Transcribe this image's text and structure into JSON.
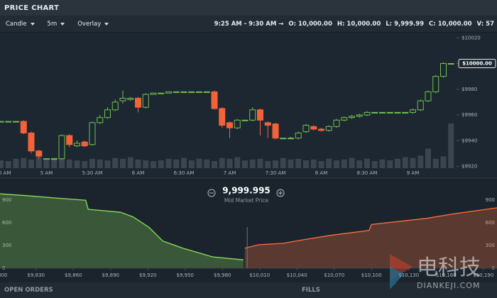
{
  "header": {
    "title": "PRICE CHART"
  },
  "toolbar": {
    "chart_type": "Candle",
    "interval": "5m",
    "overlay": "Overlay",
    "range": "9:25 AM - 9:30 AM →",
    "ohlcv": [
      {
        "key": "O:",
        "value": "10,000.00"
      },
      {
        "key": "H:",
        "value": "10,000.00"
      },
      {
        "key": "L:",
        "value": "9,999.99"
      },
      {
        "key": "C:",
        "value": "10,000.00"
      },
      {
        "key": "V:",
        "value": "57"
      }
    ]
  },
  "chart_data": [
    {
      "type": "candlestick",
      "x": [
        "4:30 AM",
        "4:35 AM",
        "4:40 AM",
        "4:45 AM",
        "4:50 AM",
        "4:55 AM",
        "5 AM",
        "5:05 AM",
        "5:10 AM",
        "5:15 AM",
        "5:20 AM",
        "5:25 AM",
        "5:30 AM",
        "5:35 AM",
        "5:40 AM",
        "5:45 AM",
        "5:50 AM",
        "5:55 AM",
        "6 AM",
        "6:05 AM",
        "6:10 AM",
        "6:15 AM",
        "6:20 AM",
        "6:25 AM",
        "6:30 AM",
        "6:35 AM",
        "6:40 AM",
        "6:45 AM",
        "6:50 AM",
        "6:55 AM",
        "7 AM",
        "7:05 AM",
        "7:10 AM",
        "7:15 AM",
        "7:20 AM",
        "7:25 AM",
        "7:30 AM",
        "7:35 AM",
        "7:40 AM",
        "7:45 AM",
        "7:50 AM",
        "7:55 AM",
        "8 AM",
        "8:05 AM",
        "8:10 AM",
        "8:15 AM",
        "8:20 AM",
        "8:25 AM",
        "8:30 AM",
        "8:35 AM",
        "8:40 AM",
        "8:45 AM",
        "8:50 AM",
        "8:55 AM",
        "9 AM",
        "9:05 AM",
        "9:10 AM",
        "9:15 AM",
        "9:20 AM",
        "9:25 AM"
      ],
      "open": [
        9955,
        9955,
        9955,
        9955,
        9946,
        9932,
        9926,
        9926,
        9926,
        9944,
        9936,
        9939,
        9937,
        9954,
        9958,
        9964,
        9971,
        9972,
        9973,
        9966,
        9976,
        9977,
        9977,
        9978,
        9978,
        9978,
        9978,
        9978,
        9978,
        9965,
        9954,
        9950,
        9956,
        9956,
        9964,
        9954,
        9953,
        9942,
        9942,
        9942,
        9947,
        9951,
        9949,
        9948,
        9951,
        9956,
        9958,
        9959,
        9960,
        9962,
        9962,
        9962,
        9962,
        9962,
        9962,
        9964,
        9971,
        9978,
        9990,
        10000
      ],
      "high": [
        9955,
        9955,
        9955,
        9956,
        9947,
        9933,
        9926,
        9926,
        9945,
        9945,
        9940,
        9940,
        9955,
        9960,
        9966,
        9972,
        9979,
        9974,
        9974,
        9977,
        9977,
        9977,
        9978,
        9978,
        9978,
        9978,
        9978,
        9978,
        9979,
        9966,
        9955,
        9957,
        9956,
        9966,
        9965,
        9955,
        9954,
        9942,
        9943,
        9947,
        9953,
        9952,
        9950,
        9952,
        9957,
        9959,
        9960,
        9961,
        9963,
        9962,
        9962,
        9962,
        9962,
        9962,
        9965,
        9972,
        9979,
        9991,
        10001,
        10000
      ],
      "low": [
        9955,
        9955,
        9955,
        9945,
        9930,
        9926,
        9926,
        9926,
        9925,
        9935,
        9935,
        9935,
        9936,
        9953,
        9957,
        9963,
        9969,
        9971,
        9962,
        9965,
        9976,
        9977,
        9977,
        9978,
        9978,
        9978,
        9978,
        9978,
        9964,
        9950,
        9942,
        9949,
        9956,
        9955,
        9944,
        9942,
        9941,
        9942,
        9942,
        9941,
        9946,
        9948,
        9947,
        9947,
        9950,
        9955,
        9957,
        9958,
        9959,
        9962,
        9962,
        9962,
        9962,
        9962,
        9961,
        9963,
        9970,
        9977,
        9989,
        9999.99
      ],
      "close": [
        9955,
        9955,
        9955,
        9946,
        9932,
        9928,
        9926,
        9926,
        9944,
        9937,
        9938,
        9936,
        9954,
        9958,
        9964,
        9970,
        9973,
        9973,
        9966,
        9976,
        9977,
        9977,
        9978,
        9978,
        9978,
        9978,
        9978,
        9978,
        9965,
        9952,
        9950,
        9956,
        9956,
        9964,
        9956,
        9952,
        9942,
        9942,
        9942,
        9946,
        9952,
        9949,
        9948,
        9951,
        9956,
        9958,
        9959,
        9960,
        9962,
        9962,
        9962,
        9962,
        9962,
        9962,
        9964,
        9971,
        9978,
        9990,
        10000,
        10000
      ],
      "volume": [
        10,
        9,
        12,
        13,
        11,
        14,
        10,
        13,
        12,
        11,
        10,
        9,
        12,
        11,
        10,
        13,
        12,
        14,
        11,
        10,
        9,
        10,
        12,
        11,
        13,
        10,
        12,
        11,
        9,
        13,
        12,
        14,
        10,
        11,
        12,
        9,
        10,
        13,
        11,
        12,
        10,
        11,
        9,
        12,
        10,
        11,
        13,
        10,
        12,
        9,
        11,
        10,
        12,
        14,
        13,
        16,
        25,
        12,
        15,
        57
      ],
      "ylim": [
        9917,
        10024
      ],
      "yticks": [
        {
          "value": 9920,
          "label": "$9920"
        },
        {
          "value": 9940,
          "label": "$9940"
        },
        {
          "value": 9960,
          "label": "$9960"
        },
        {
          "value": 9980,
          "label": "$9980"
        },
        {
          "value": 10000,
          "label": "$10000"
        },
        {
          "value": 10020,
          "label": "$10020"
        }
      ],
      "xticks": [
        "4:30 AM",
        "5 AM",
        "5:30 AM",
        "6 AM",
        "6:30 AM",
        "7 AM",
        "7:30 AM",
        "8 AM",
        "8:30 AM",
        "9 AM"
      ],
      "last_price": {
        "value": 10000,
        "label": "$10000.00"
      },
      "up_color": "#6fbf4f",
      "down_color": "#f4623a",
      "volume_color": "#3a4550"
    },
    {
      "type": "depth",
      "series": [
        {
          "color": "#8de05a",
          "x": [
            9801,
            9823,
            9845,
            9870,
            9872,
            9898,
            9908,
            9921,
            9932,
            9949,
            9972,
            9997
          ],
          "values": [
            985,
            960,
            930,
            900,
            780,
            740,
            680,
            540,
            360,
            260,
            150,
            110
          ]
        },
        {
          "color": "#ff6f3c",
          "x": [
            9998,
            10009,
            10029,
            10046,
            10069,
            10098,
            10100,
            10144,
            10166,
            10201
          ],
          "values": [
            265,
            310,
            330,
            380,
            440,
            500,
            580,
            660,
            720,
            800
          ]
        }
      ],
      "xlim": [
        9801,
        10201
      ],
      "xticks": [
        {
          "value": 9800,
          "label": "$9,800"
        },
        {
          "value": 9830,
          "label": "$9,830"
        },
        {
          "value": 9860,
          "label": "$9,860"
        },
        {
          "value": 9890,
          "label": "$9,890"
        },
        {
          "value": 9920,
          "label": "$9,920"
        },
        {
          "value": 9950,
          "label": "$9,950"
        },
        {
          "value": 9980,
          "label": "$9,980"
        },
        {
          "value": 10010,
          "label": "$10,010"
        },
        {
          "value": 10040,
          "label": "$10,040"
        },
        {
          "value": 10070,
          "label": "$10,070"
        },
        {
          "value": 10100,
          "label": "$10,100"
        },
        {
          "value": 10130,
          "label": "$10,130"
        },
        {
          "value": 10160,
          "label": "$10,160"
        },
        {
          "value": 10190,
          "label": "$10,190"
        }
      ],
      "ylim": [
        0,
        1090
      ],
      "yticks": [
        0,
        300,
        600,
        900
      ],
      "mid_price": {
        "value": 9999.995,
        "label": "9,999.995"
      },
      "mid_label": "Mid Market Price"
    }
  ],
  "footer": {
    "left": "OPEN ORDERS",
    "right": "FILLS"
  },
  "watermark": {
    "brand": "电科技",
    "site": "DIANKEJI.COM"
  }
}
